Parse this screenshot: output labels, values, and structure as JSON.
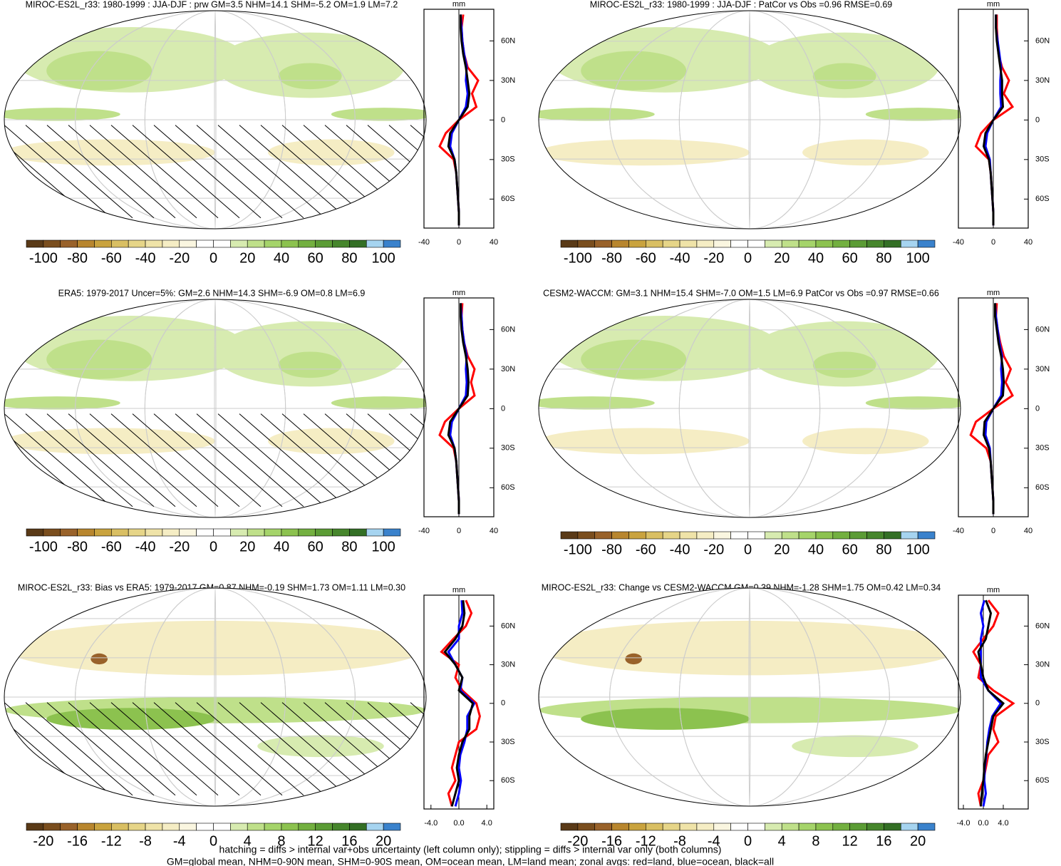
{
  "chart_data": [
    {
      "type": "map",
      "title": "MIROC-ES2L_r33: 1980-1999 : JJA-DJF : prw GM=3.5 NHM=14.1 SHM=-5.2 OM=1.9 LM=7.2",
      "hatching": true,
      "zonal": {
        "x_label": "mm",
        "xlim": [
          -40,
          40
        ],
        "xticks": [
          -40,
          0,
          40
        ],
        "ylim": [
          -82,
          84
        ],
        "yticks": [
          {
            "value": -60,
            "label": "60S"
          },
          {
            "value": -30,
            "label": "30S"
          },
          0,
          {
            "value": 30,
            "label": "30N"
          },
          {
            "value": 60,
            "label": "60N"
          }
        ],
        "y": [
          -80,
          -70,
          -60,
          -50,
          -40,
          -30,
          -20,
          -10,
          0,
          10,
          20,
          30,
          40,
          50,
          60,
          70,
          80
        ],
        "series": [
          {
            "name": "land",
            "color": "#ff0000",
            "values": [
              0,
              0,
              -1,
              -2,
              -3,
              -6,
              -22,
              -15,
              0,
              20,
              15,
              22,
              10,
              6,
              4,
              3,
              5
            ]
          },
          {
            "name": "ocean",
            "color": "#0000ff",
            "values": [
              0,
              0,
              -1,
              -2,
              -3,
              -5,
              -10,
              -8,
              0,
              8,
              10,
              8,
              9,
              6,
              4,
              3,
              2
            ]
          },
          {
            "name": "all",
            "color": "#000000",
            "values": [
              0,
              0,
              -1,
              -2,
              -3,
              -5,
              -12,
              -10,
              0,
              10,
              12,
              10,
              8,
              5,
              3,
              2,
              2
            ]
          }
        ]
      },
      "colorbar": {
        "lim": [
          -110,
          110
        ],
        "ticks": [
          -100,
          -80,
          -60,
          -40,
          -20,
          0,
          20,
          40,
          60,
          80,
          100
        ],
        "colors": [
          "#5a3a17",
          "#7a4e1e",
          "#99622a",
          "#b8862e",
          "#c9a33e",
          "#d9bf63",
          "#e6d588",
          "#efe3a8",
          "#f5edc4",
          "#faf6e0",
          "#ffffff",
          "#ffffff",
          "#d7ebb0",
          "#bfe08a",
          "#a5d46a",
          "#8cc24f",
          "#73b040",
          "#5b9c35",
          "#46862c",
          "#336f25",
          "#a6d4f0",
          "#3a82cc"
        ]
      }
    },
    {
      "type": "map",
      "title": "MIROC-ES2L_r33: 1980-1999 : JJA-DJF : PatCor vs Obs =0.96 RMSE=0.69",
      "hatching": false,
      "zonal": {
        "x_label": "mm",
        "xlim": [
          -40,
          40
        ],
        "xticks": [
          -40,
          0,
          40
        ],
        "ylim": [
          -82,
          84
        ],
        "yticks": [
          {
            "value": -60,
            "label": "60S"
          },
          {
            "value": -30,
            "label": "30S"
          },
          0,
          {
            "value": 30,
            "label": "30N"
          },
          {
            "value": 60,
            "label": "60N"
          }
        ],
        "y": [
          -80,
          -70,
          -60,
          -50,
          -40,
          -30,
          -20,
          -10,
          0,
          10,
          20,
          30,
          40,
          50,
          60,
          70,
          80
        ],
        "series": [
          {
            "name": "land",
            "color": "#ff0000",
            "values": [
              0,
              0,
              -1,
              -2,
              -3,
              -5,
              -20,
              -14,
              0,
              22,
              12,
              18,
              10,
              6,
              5,
              4,
              4
            ]
          },
          {
            "name": "ocean",
            "color": "#0000ff",
            "values": [
              0,
              0,
              -1,
              -2,
              -3,
              -4,
              -9,
              -7,
              0,
              9,
              8,
              8,
              9,
              7,
              5,
              3,
              3
            ]
          },
          {
            "name": "all",
            "color": "#000000",
            "values": [
              0,
              0,
              -1,
              -2,
              -3,
              -5,
              -11,
              -9,
              0,
              11,
              10,
              10,
              8,
              6,
              4,
              3,
              3
            ]
          }
        ]
      },
      "colorbar": {
        "lim": [
          -110,
          110
        ],
        "ticks": [
          -100,
          -80,
          -60,
          -40,
          -20,
          0,
          20,
          40,
          60,
          80,
          100
        ],
        "colors": [
          "#5a3a17",
          "#7a4e1e",
          "#99622a",
          "#b8862e",
          "#c9a33e",
          "#d9bf63",
          "#e6d588",
          "#efe3a8",
          "#f5edc4",
          "#faf6e0",
          "#ffffff",
          "#ffffff",
          "#d7ebb0",
          "#bfe08a",
          "#a5d46a",
          "#8cc24f",
          "#73b040",
          "#5b9c35",
          "#46862c",
          "#336f25",
          "#a6d4f0",
          "#3a82cc"
        ]
      }
    },
    {
      "type": "map",
      "title": "ERA5: 1979-2017 Uncer=5%: GM=2.6 NHM=14.3 SHM=-6.9 OM=0.8 LM=6.9",
      "hatching": true,
      "zonal": {
        "x_label": "mm",
        "xlim": [
          -40,
          40
        ],
        "xticks": [
          -40,
          0,
          40
        ],
        "ylim": [
          -82,
          84
        ],
        "yticks": [
          {
            "value": -60,
            "label": "60S"
          },
          {
            "value": -30,
            "label": "30S"
          },
          0,
          {
            "value": 30,
            "label": "30N"
          },
          {
            "value": 60,
            "label": "60N"
          }
        ],
        "y": [
          -80,
          -70,
          -60,
          -50,
          -40,
          -30,
          -20,
          -10,
          0,
          10,
          20,
          30,
          40,
          50,
          60,
          70,
          80
        ],
        "series": [
          {
            "name": "land",
            "color": "#ff0000",
            "values": [
              0,
              0,
              -1,
              -2,
              -3,
              -6,
              -22,
              -16,
              0,
              18,
              14,
              18,
              10,
              6,
              4,
              3,
              4
            ]
          },
          {
            "name": "ocean",
            "color": "#0000ff",
            "values": [
              0,
              0,
              -1,
              -2,
              -3,
              -5,
              -10,
              -8,
              0,
              8,
              9,
              8,
              9,
              6,
              4,
              3,
              2
            ]
          },
          {
            "name": "all",
            "color": "#000000",
            "values": [
              0,
              0,
              -1,
              -2,
              -3,
              -5,
              -12,
              -10,
              0,
              10,
              11,
              10,
              8,
              5,
              3,
              2,
              2
            ]
          }
        ]
      },
      "colorbar": {
        "lim": [
          -110,
          110
        ],
        "ticks": [
          -100,
          -80,
          -60,
          -40,
          -20,
          0,
          20,
          40,
          60,
          80,
          100
        ],
        "colors": [
          "#5a3a17",
          "#7a4e1e",
          "#99622a",
          "#b8862e",
          "#c9a33e",
          "#d9bf63",
          "#e6d588",
          "#efe3a8",
          "#f5edc4",
          "#faf6e0",
          "#ffffff",
          "#ffffff",
          "#d7ebb0",
          "#bfe08a",
          "#a5d46a",
          "#8cc24f",
          "#73b040",
          "#5b9c35",
          "#46862c",
          "#336f25",
          "#a6d4f0",
          "#3a82cc"
        ]
      }
    },
    {
      "type": "map",
      "title": "CESM2-WACCM: GM=3.1 NHM=15.4 SHM=-7.0 OM=1.5 LM=6.9 PatCor vs Obs =0.97 RMSE=0.66",
      "hatching": false,
      "zonal": {
        "x_label": "mm",
        "xlim": [
          -40,
          40
        ],
        "xticks": [
          -40,
          0,
          40
        ],
        "ylim": [
          -82,
          84
        ],
        "yticks": [
          {
            "value": -60,
            "label": "60S"
          },
          {
            "value": -30,
            "label": "30S"
          },
          0,
          {
            "value": 30,
            "label": "30N"
          },
          {
            "value": 60,
            "label": "60N"
          }
        ],
        "y": [
          -80,
          -70,
          -60,
          -50,
          -40,
          -30,
          -20,
          -10,
          0,
          10,
          20,
          30,
          40,
          50,
          60,
          70,
          80
        ],
        "series": [
          {
            "name": "land",
            "color": "#ff0000",
            "values": [
              0,
              0,
              -1,
              -2,
              -3,
              -8,
              -26,
              -20,
              0,
              22,
              14,
              20,
              12,
              8,
              5,
              3,
              4
            ]
          },
          {
            "name": "ocean",
            "color": "#0000ff",
            "values": [
              0,
              0,
              -1,
              -2,
              -3,
              -4,
              -9,
              -8,
              0,
              9,
              10,
              9,
              10,
              7,
              5,
              3,
              2
            ]
          },
          {
            "name": "all",
            "color": "#000000",
            "values": [
              0,
              0,
              -1,
              -2,
              -3,
              -5,
              -11,
              -10,
              0,
              11,
              12,
              11,
              9,
              6,
              4,
              2,
              2
            ]
          }
        ]
      },
      "colorbar": {
        "lim": [
          -110,
          110
        ],
        "ticks": [
          -100,
          -80,
          -60,
          -40,
          -20,
          0,
          20,
          40,
          60,
          80,
          100
        ],
        "colors": [
          "#5a3a17",
          "#7a4e1e",
          "#99622a",
          "#b8862e",
          "#c9a33e",
          "#d9bf63",
          "#e6d588",
          "#efe3a8",
          "#f5edc4",
          "#faf6e0",
          "#ffffff",
          "#ffffff",
          "#d7ebb0",
          "#bfe08a",
          "#a5d46a",
          "#8cc24f",
          "#73b040",
          "#5b9c35",
          "#46862c",
          "#336f25",
          "#a6d4f0",
          "#3a82cc"
        ]
      }
    },
    {
      "type": "map",
      "title": "MIROC-ES2L_r33: Bias vs ERA5: 1979-2017 GM=0.87 NHM=-0.19 SHM=1.73 OM=1.11 LM=0.30",
      "hatching": true,
      "zonal": {
        "x_label": "mm",
        "xlim": [
          -5,
          5
        ],
        "xticks": [
          {
            "value": -4,
            "label": "-4.0"
          },
          {
            "value": 0,
            "label": "0.0"
          },
          {
            "value": 4,
            "label": "4.0"
          }
        ],
        "ylim": [
          -82,
          84
        ],
        "yticks": [
          {
            "value": -60,
            "label": "60S"
          },
          {
            "value": -30,
            "label": "30S"
          },
          0,
          {
            "value": 30,
            "label": "30N"
          },
          {
            "value": 60,
            "label": "60N"
          }
        ],
        "y": [
          -80,
          -70,
          -60,
          -50,
          -40,
          -30,
          -20,
          -10,
          0,
          10,
          20,
          30,
          40,
          50,
          60,
          70,
          80
        ],
        "series": [
          {
            "name": "land",
            "color": "#ff0000",
            "values": [
              -1,
              -1.5,
              -0.5,
              -1,
              -0.5,
              0,
              2.5,
              3,
              2.5,
              0.5,
              -0.5,
              0,
              -2.5,
              -0.8,
              1,
              1.8,
              1
            ]
          },
          {
            "name": "ocean",
            "color": "#0000ff",
            "values": [
              -0.5,
              0,
              0.3,
              0,
              0.2,
              0.8,
              1.2,
              1.2,
              2.2,
              0.2,
              0.5,
              -0.5,
              -1.5,
              0,
              0,
              0.5,
              0.4
            ]
          },
          {
            "name": "all",
            "color": "#000000",
            "values": [
              -1,
              -0.5,
              0,
              -0.3,
              0,
              0.5,
              1.5,
              1.5,
              2,
              0,
              0.5,
              -0.5,
              -2,
              -0.5,
              0.5,
              0.8,
              0.6
            ]
          }
        ]
      },
      "colorbar": {
        "lim": [
          -22,
          22
        ],
        "ticks": [
          -20,
          -16,
          -12,
          -8,
          -4,
          0,
          4,
          8,
          12,
          16,
          20
        ],
        "colors": [
          "#5a3a17",
          "#7a4e1e",
          "#99622a",
          "#b8862e",
          "#c9a33e",
          "#d9bf63",
          "#e6d588",
          "#efe3a8",
          "#f5edc4",
          "#faf6e0",
          "#ffffff",
          "#ffffff",
          "#d7ebb0",
          "#bfe08a",
          "#a5d46a",
          "#8cc24f",
          "#73b040",
          "#5b9c35",
          "#46862c",
          "#336f25",
          "#a6d4f0",
          "#3a82cc"
        ]
      }
    },
    {
      "type": "map",
      "title": "MIROC-ES2L_r33: Change vs CESM2-WACCM GM=0.39 NHM=-1.28 SHM=1.75 OM=0.42 LM=0.34",
      "hatching": false,
      "zonal": {
        "x_label": "mm",
        "xlim": [
          -5,
          9
        ],
        "xticks": [
          {
            "value": -4,
            "label": "-4.0"
          },
          {
            "value": 0,
            "label": "0.0"
          },
          {
            "value": 4,
            "label": "4.0"
          }
        ],
        "ylim": [
          -82,
          84
        ],
        "yticks": [
          {
            "value": -60,
            "label": "60S"
          },
          {
            "value": -30,
            "label": "30S"
          },
          0,
          {
            "value": 30,
            "label": "30N"
          },
          {
            "value": 60,
            "label": "60N"
          }
        ],
        "y": [
          -80,
          -70,
          -60,
          -50,
          -40,
          -30,
          -20,
          -10,
          0,
          10,
          20,
          30,
          40,
          50,
          60,
          70,
          80
        ],
        "series": [
          {
            "name": "land",
            "color": "#ff0000",
            "values": [
              -0.5,
              -1,
              0,
              0.5,
              1,
              3,
              2,
              2.5,
              6,
              2,
              -1,
              -0.5,
              -2,
              0,
              2,
              3,
              1
            ]
          },
          {
            "name": "ocean",
            "color": "#0000ff",
            "values": [
              0,
              0.5,
              0.2,
              0.3,
              0.6,
              0.8,
              1.2,
              1.8,
              3.5,
              1,
              -0.5,
              -0.5,
              -0.5,
              -0.5,
              0,
              -0.5,
              0.2
            ]
          },
          {
            "name": "all",
            "color": "#000000",
            "values": [
              -0.5,
              -0.3,
              0,
              0.2,
              0.5,
              1,
              1.5,
              2,
              4,
              1,
              0,
              -0.5,
              -1,
              0.5,
              1,
              1.5,
              0.5
            ]
          }
        ]
      },
      "colorbar": {
        "lim": [
          -22,
          22
        ],
        "ticks": [
          -20,
          -16,
          -12,
          -8,
          -4,
          0,
          4,
          8,
          12,
          16,
          20
        ],
        "colors": [
          "#5a3a17",
          "#7a4e1e",
          "#99622a",
          "#b8862e",
          "#c9a33e",
          "#d9bf63",
          "#e6d588",
          "#efe3a8",
          "#f5edc4",
          "#faf6e0",
          "#ffffff",
          "#ffffff",
          "#d7ebb0",
          "#bfe08a",
          "#a5d46a",
          "#8cc24f",
          "#73b040",
          "#5b9c35",
          "#46862c",
          "#336f25",
          "#a6d4f0",
          "#3a82cc"
        ]
      }
    }
  ],
  "footer": [
    "hatching = diffs > internal var+obs uncertainty (left column only); stippling = diffs > internal var only (both columns)",
    "GM=global mean, NHM=0-90N mean, SHM=0-90S mean, OM=ocean mean, LM=land mean; zonal avgs: red=land, blue=ocean, black=all"
  ]
}
